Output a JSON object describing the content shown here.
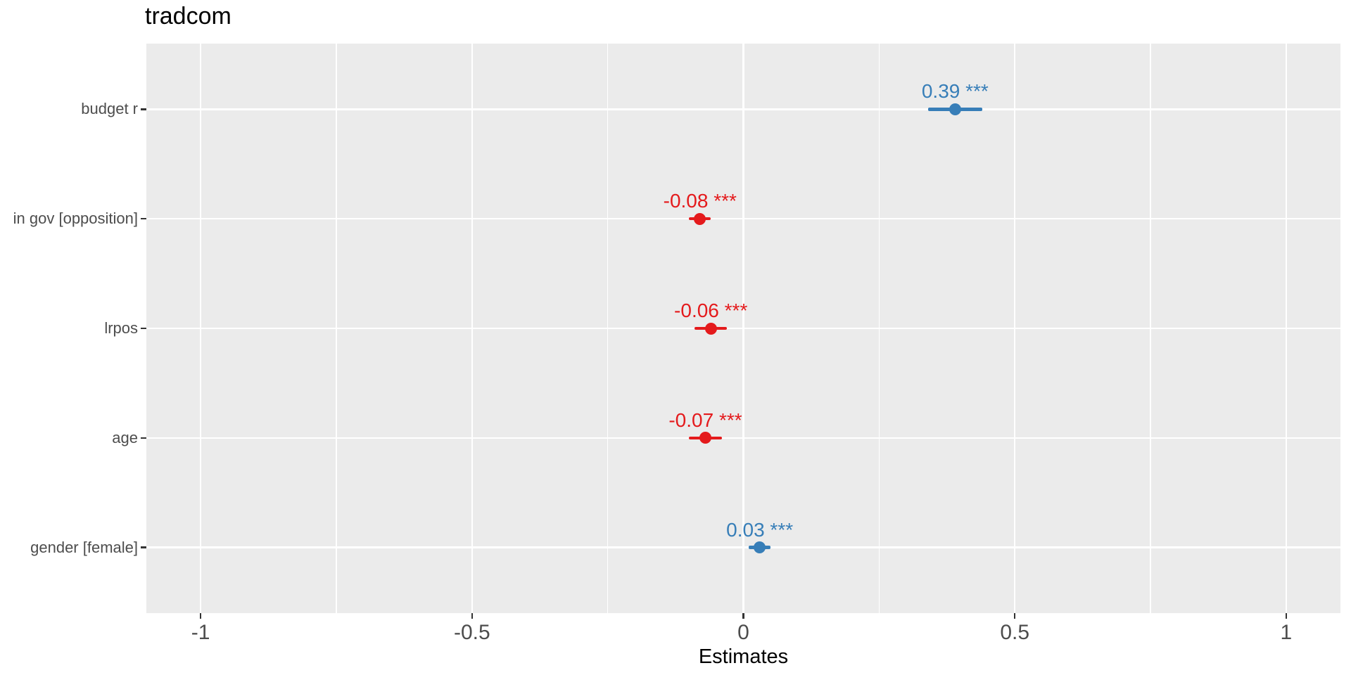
{
  "chart_data": {
    "type": "scatter",
    "subtype": "forest-dot-whisker",
    "title": "tradcom",
    "xlabel": "Estimates",
    "ylabel": "",
    "xlim": [
      -1.1,
      1.1
    ],
    "x_major_ticks": [
      -1,
      -0.5,
      0,
      0.5,
      1
    ],
    "x_major_tick_labels": [
      "-1",
      "-0.5",
      "0",
      "0.5",
      "1"
    ],
    "x_minor_ticks": [
      -0.75,
      -0.25,
      0.25,
      0.75
    ],
    "grid": true,
    "legend_position": "none",
    "categories": [
      "budget r",
      "in gov [opposition]",
      "lrpos",
      "age",
      "gender [female]"
    ],
    "series": [
      {
        "name": "budget r",
        "estimate": 0.39,
        "ci_low": 0.34,
        "ci_high": 0.44,
        "value_label": "0.39",
        "stars": "***",
        "color": "#377EB8"
      },
      {
        "name": "in gov [opposition]",
        "estimate": -0.08,
        "ci_low": -0.1,
        "ci_high": -0.06,
        "value_label": "-0.08",
        "stars": "***",
        "color": "#E41A1C"
      },
      {
        "name": "lrpos",
        "estimate": -0.06,
        "ci_low": -0.09,
        "ci_high": -0.03,
        "value_label": "-0.06",
        "stars": "***",
        "color": "#E41A1C"
      },
      {
        "name": "age",
        "estimate": -0.07,
        "ci_low": -0.1,
        "ci_high": -0.04,
        "value_label": "-0.07",
        "stars": "***",
        "color": "#E41A1C"
      },
      {
        "name": "gender [female]",
        "estimate": 0.03,
        "ci_low": 0.01,
        "ci_high": 0.05,
        "value_label": "0.03",
        "stars": "***",
        "color": "#377EB8"
      }
    ],
    "colors": {
      "positive": "#377EB8",
      "negative": "#E41A1C",
      "panel_background": "#EBEBEB",
      "gridline": "#FFFFFF",
      "axis_text": "#4D4D4D",
      "tick_mark": "#333333",
      "title_text": "#000000"
    }
  }
}
